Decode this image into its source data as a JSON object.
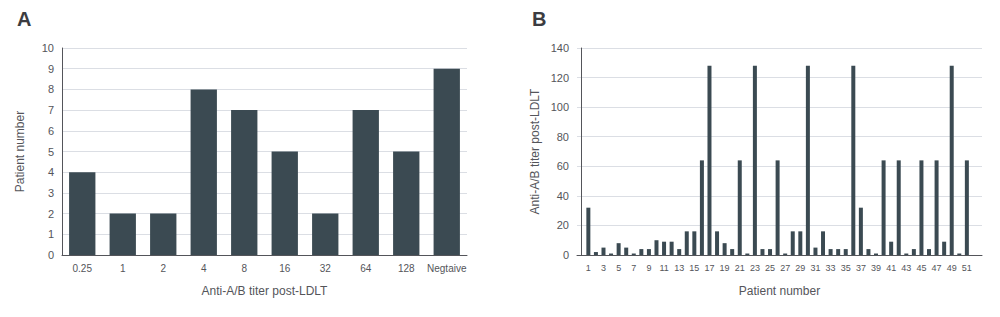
{
  "chart_data": [
    {
      "type": "bar",
      "title": "A",
      "categories": [
        "0.25",
        "1",
        "2",
        "4",
        "8",
        "16",
        "32",
        "64",
        "128",
        "Negtaive"
      ],
      "values": [
        4,
        2,
        2,
        8,
        7,
        5,
        2,
        7,
        5,
        9
      ],
      "xlabel": "Anti-A/B titer post-LDLT",
      "ylabel": "Patient number",
      "color": "#3b4a52",
      "ylim": [
        0,
        10
      ],
      "yticks": [
        0,
        1,
        2,
        3,
        4,
        5,
        6,
        7,
        8,
        9,
        10
      ],
      "grid": true
    },
    {
      "type": "bar",
      "title": "B",
      "x": [
        1,
        2,
        3,
        4,
        5,
        6,
        7,
        8,
        9,
        10,
        11,
        12,
        13,
        14,
        15,
        16,
        17,
        18,
        19,
        20,
        21,
        22,
        23,
        24,
        25,
        26,
        27,
        28,
        29,
        30,
        31,
        32,
        33,
        34,
        35,
        36,
        37,
        38,
        39,
        40,
        41,
        42,
        43,
        44,
        45,
        46,
        47,
        48,
        49,
        50,
        51
      ],
      "values": [
        32,
        2,
        5,
        1,
        8,
        5,
        1,
        4,
        4,
        10,
        9,
        9,
        4,
        16,
        16,
        64,
        128,
        16,
        8,
        4,
        64,
        1,
        128,
        4,
        4,
        64,
        1,
        16,
        16,
        128,
        5,
        16,
        4,
        4,
        4,
        128,
        32,
        4,
        1,
        64,
        9,
        64,
        1,
        4,
        64,
        4,
        64,
        9,
        128,
        1,
        64
      ],
      "xlabel": "Patient number",
      "ylabel": "Anti-A/B titer post-LDLT",
      "color": "#3b4a52",
      "xlim": [
        -0.5,
        53
      ],
      "xticks": [
        1,
        3,
        5,
        7,
        9,
        11,
        13,
        15,
        17,
        19,
        21,
        23,
        25,
        27,
        29,
        31,
        33,
        35,
        37,
        39,
        41,
        43,
        45,
        47,
        49,
        51
      ],
      "ylim": [
        0,
        140
      ],
      "yticks": [
        0,
        20,
        40,
        60,
        80,
        100,
        120,
        140
      ],
      "grid": true
    }
  ]
}
